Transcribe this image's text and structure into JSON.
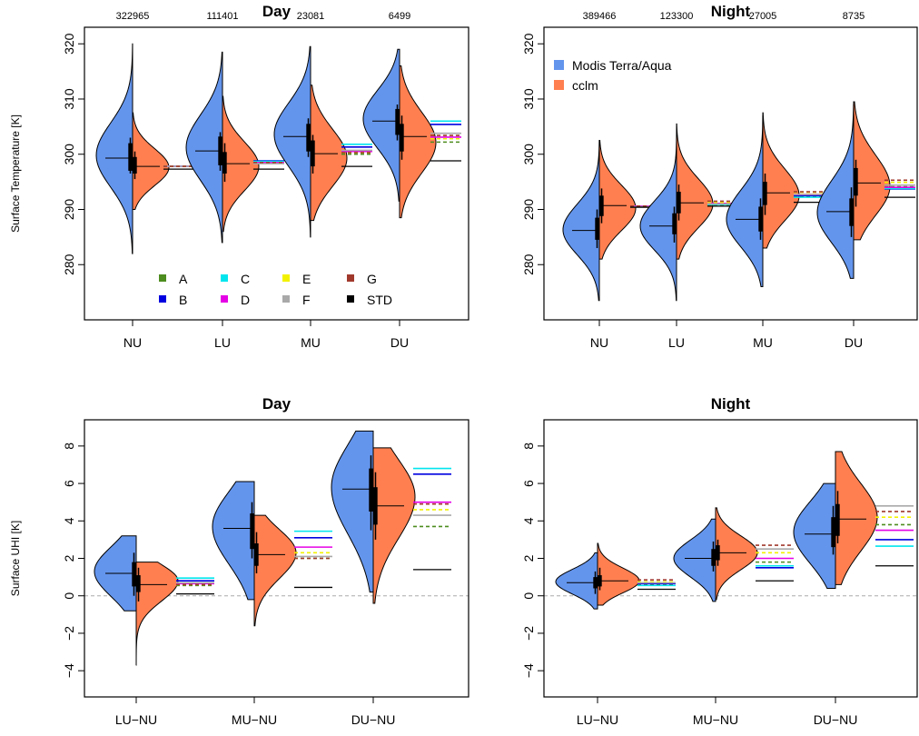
{
  "colors": {
    "modis": "#6495ED",
    "cclm": "#FF7F50",
    "A": "#4D8C1F",
    "B": "#0000E0",
    "C": "#00E5EE",
    "D": "#E500E5",
    "E": "#F2F200",
    "F": "#A9A9A9",
    "G": "#A0392C",
    "STD": "#000000"
  },
  "legend_models": [
    {
      "label": "A",
      "color": "#4D8C1F"
    },
    {
      "label": "B",
      "color": "#0000E0"
    },
    {
      "label": "C",
      "color": "#00E5EE"
    },
    {
      "label": "D",
      "color": "#E500E5"
    },
    {
      "label": "E",
      "color": "#F2F200"
    },
    {
      "label": "F",
      "color": "#A9A9A9"
    },
    {
      "label": "G",
      "color": "#A0392C"
    },
    {
      "label": "STD",
      "color": "#000000"
    }
  ],
  "legend_series": [
    {
      "label": "Modis Terra/Aqua",
      "color": "#6495ED"
    },
    {
      "label": "cclm",
      "color": "#FF7F50"
    }
  ],
  "chart_data": [
    {
      "type": "violin",
      "title": "Day",
      "ylabel": "Surface Temperature [K]",
      "ylim": [
        270,
        323
      ],
      "yticks": [
        "280",
        "290",
        "300",
        "310",
        "320"
      ],
      "yticks_values": [
        280,
        290,
        300,
        310,
        320
      ],
      "categories": [
        "NU",
        "LU",
        "MU",
        "DU"
      ],
      "counts": [
        "322965",
        "111401",
        "23081",
        "6499"
      ],
      "series": [
        {
          "name": "Modis Terra/Aqua",
          "median": [
            299.3,
            300.6,
            303.2,
            306.0
          ],
          "q1": [
            297.0,
            298.0,
            300.5,
            303.5
          ],
          "q3": [
            302.0,
            303.2,
            305.5,
            308.2
          ],
          "wlo": [
            296.5,
            297.0,
            299.5,
            302.5
          ],
          "whi": [
            303.0,
            304.0,
            306.5,
            309.0
          ],
          "min": [
            282.0,
            284.0,
            285.0,
            291.5
          ],
          "max": [
            320.0,
            318.5,
            319.5,
            319.0
          ],
          "mode": [
            299.8,
            301.2,
            303.6,
            306.4
          ]
        },
        {
          "name": "cclm",
          "median": [
            297.8,
            298.3,
            300.1,
            303.2
          ],
          "q1": [
            296.5,
            296.5,
            297.8,
            300.5
          ],
          "q3": [
            299.5,
            300.4,
            302.5,
            305.5
          ],
          "wlo": [
            295.5,
            295.0,
            296.5,
            299.0
          ],
          "whi": [
            300.5,
            302.0,
            303.5,
            307.0
          ],
          "min": [
            290.0,
            286.0,
            288.0,
            288.5
          ],
          "max": [
            307.5,
            310.5,
            312.5,
            316.0
          ],
          "mode": [
            297.6,
            297.8,
            299.3,
            302.1
          ]
        }
      ],
      "models": [
        {
          "A": 297.8,
          "B": 297.8,
          "C": 297.8,
          "D": 297.8,
          "E": 297.8,
          "F": 297.8,
          "G": 297.8,
          "STD": 297.3
        },
        {
          "A": 298.4,
          "B": 298.8,
          "C": 298.7,
          "D": 298.5,
          "E": 298.4,
          "F": 298.3,
          "G": 298.5,
          "STD": 297.3
        },
        {
          "A": 300.0,
          "B": 301.3,
          "C": 301.8,
          "D": 300.5,
          "E": 300.3,
          "F": 300.7,
          "G": 300.3,
          "STD": 297.8
        },
        {
          "A": 302.2,
          "B": 305.4,
          "C": 306.0,
          "D": 303.1,
          "E": 302.8,
          "F": 303.8,
          "G": 303.4,
          "STD": 298.8
        }
      ]
    },
    {
      "type": "violin",
      "title": "Night",
      "ylabel": "",
      "ylim": [
        270,
        323
      ],
      "yticks": [
        "280",
        "290",
        "300",
        "310",
        "320"
      ],
      "yticks_values": [
        280,
        290,
        300,
        310,
        320
      ],
      "categories": [
        "NU",
        "LU",
        "MU",
        "DU"
      ],
      "counts": [
        "389466",
        "123300",
        "27005",
        "8735"
      ],
      "series": [
        {
          "name": "Modis Terra/Aqua",
          "median": [
            286.2,
            287.0,
            288.2,
            289.6
          ],
          "q1": [
            284.5,
            285.5,
            286.0,
            287.0
          ],
          "q3": [
            288.5,
            289.3,
            290.5,
            292.0
          ],
          "wlo": [
            283.0,
            284.0,
            284.5,
            285.0
          ],
          "whi": [
            290.0,
            290.5,
            292.0,
            294.0
          ],
          "min": [
            273.5,
            273.5,
            276.0,
            277.5
          ],
          "max": [
            302.5,
            305.0,
            307.0,
            309.0
          ],
          "mode": [
            286.3,
            287.0,
            288.2,
            289.4
          ]
        },
        {
          "name": "cclm",
          "median": [
            290.7,
            291.2,
            293.0,
            294.8
          ],
          "q1": [
            288.8,
            289.3,
            290.8,
            292.5
          ],
          "q3": [
            292.5,
            293.2,
            295.0,
            297.5
          ],
          "wlo": [
            287.5,
            288.0,
            289.0,
            290.5
          ],
          "whi": [
            293.8,
            294.5,
            296.5,
            299.0
          ],
          "min": [
            281.0,
            281.0,
            283.0,
            284.5
          ],
          "max": [
            302.5,
            305.5,
            307.5,
            309.5
          ],
          "mode": [
            290.2,
            291.0,
            292.5,
            294.2
          ]
        }
      ],
      "models": [
        {
          "A": 290.5,
          "B": 290.5,
          "C": 290.6,
          "D": 290.6,
          "E": 290.6,
          "F": 290.5,
          "G": 290.6,
          "STD": 290.4
        },
        {
          "A": 290.8,
          "B": 291.0,
          "C": 290.9,
          "D": 291.1,
          "E": 291.3,
          "F": 291.0,
          "G": 291.5,
          "STD": 290.6
        },
        {
          "A": 292.4,
          "B": 292.5,
          "C": 292.2,
          "D": 292.7,
          "E": 293.1,
          "F": 292.7,
          "G": 293.2,
          "STD": 291.3
        },
        {
          "A": 294.1,
          "B": 293.7,
          "C": 293.8,
          "D": 294.0,
          "E": 294.9,
          "F": 294.4,
          "G": 295.3,
          "STD": 292.2
        }
      ]
    },
    {
      "type": "violin",
      "title": "Day",
      "ylabel": "Surface UHI [K]",
      "ylim": [
        -5.4,
        9.4
      ],
      "yticks": [
        "−4",
        "−2",
        "0",
        "2",
        "4",
        "6",
        "8"
      ],
      "yticks_values": [
        -4,
        -2,
        0,
        2,
        4,
        6,
        8
      ],
      "zero_line": true,
      "categories": [
        "LU−NU",
        "MU−NU",
        "DU−NU"
      ],
      "counts": [],
      "series": [
        {
          "name": "Modis Terra/Aqua",
          "median": [
            1.2,
            3.6,
            5.7
          ],
          "q1": [
            0.5,
            2.5,
            4.5
          ],
          "q3": [
            1.8,
            4.4,
            6.8
          ],
          "wlo": [
            0.0,
            2.0,
            3.5
          ],
          "whi": [
            2.3,
            5.0,
            7.5
          ],
          "min": [
            -0.8,
            -0.2,
            0.2
          ],
          "max": [
            3.2,
            6.1,
            8.8
          ],
          "mode": [
            1.3,
            3.7,
            5.8
          ]
        },
        {
          "name": "cclm",
          "median": [
            0.6,
            2.2,
            4.8
          ],
          "q1": [
            0.2,
            1.6,
            3.8
          ],
          "q3": [
            1.1,
            2.8,
            5.8
          ],
          "wlo": [
            -0.3,
            1.2,
            3.0
          ],
          "whi": [
            1.5,
            3.4,
            6.6
          ],
          "min": [
            -3.7,
            -1.6,
            -0.4
          ],
          "max": [
            1.8,
            4.3,
            7.9
          ],
          "mode": [
            0.8,
            2.3,
            5.3
          ]
        }
      ],
      "models": [
        {
          "A": 0.55,
          "B": 0.8,
          "C": 0.95,
          "D": 0.65,
          "E": 0.6,
          "F": 0.7,
          "G": 0.6,
          "STD": 0.1
        },
        {
          "A": 2.0,
          "B": 3.1,
          "C": 3.45,
          "D": 2.6,
          "E": 2.3,
          "F": 2.1,
          "G": 2.0,
          "STD": 0.45
        },
        {
          "A": 3.7,
          "B": 6.5,
          "C": 6.8,
          "D": 5.0,
          "E": 4.6,
          "F": 4.3,
          "G": 4.9,
          "STD": 1.4
        }
      ]
    },
    {
      "type": "violin",
      "title": "Night",
      "ylabel": "",
      "ylim": [
        -5.4,
        9.4
      ],
      "yticks": [
        "−4",
        "−2",
        "0",
        "2",
        "4",
        "6",
        "8"
      ],
      "yticks_values": [
        -4,
        -2,
        0,
        2,
        4,
        6,
        8
      ],
      "zero_line": true,
      "categories": [
        "LU−NU",
        "MU−NU",
        "DU−NU"
      ],
      "counts": [],
      "series": [
        {
          "name": "Modis Terra/Aqua",
          "median": [
            0.7,
            2.0,
            3.3
          ],
          "q1": [
            0.4,
            1.6,
            2.6
          ],
          "q3": [
            1.0,
            2.5,
            4.2
          ],
          "wlo": [
            0.1,
            1.3,
            2.2
          ],
          "whi": [
            1.3,
            2.9,
            4.8
          ],
          "min": [
            -0.7,
            -0.3,
            0.4
          ],
          "max": [
            2.3,
            4.1,
            6.0
          ],
          "mode": [
            0.75,
            2.0,
            3.4
          ]
        },
        {
          "name": "cclm",
          "median": [
            0.8,
            2.3,
            4.1
          ],
          "q1": [
            0.5,
            1.9,
            3.2
          ],
          "q3": [
            1.1,
            2.7,
            4.9
          ],
          "wlo": [
            0.3,
            1.6,
            2.8
          ],
          "whi": [
            1.5,
            3.0,
            5.6
          ],
          "min": [
            -0.5,
            -0.2,
            0.6
          ],
          "max": [
            2.8,
            4.7,
            7.7
          ],
          "mode": [
            0.8,
            2.3,
            4.2
          ]
        }
      ],
      "models": [
        {
          "A": 0.6,
          "B": 0.65,
          "C": 0.55,
          "D": 0.7,
          "E": 0.75,
          "F": 0.7,
          "G": 0.85,
          "STD": 0.35
        },
        {
          "A": 1.8,
          "B": 1.5,
          "C": 1.6,
          "D": 2.0,
          "E": 2.3,
          "F": 2.5,
          "G": 2.7,
          "STD": 0.8
        },
        {
          "A": 3.8,
          "B": 3.0,
          "C": 2.65,
          "D": 3.5,
          "E": 4.2,
          "F": 4.8,
          "G": 4.5,
          "STD": 1.6
        }
      ]
    }
  ]
}
